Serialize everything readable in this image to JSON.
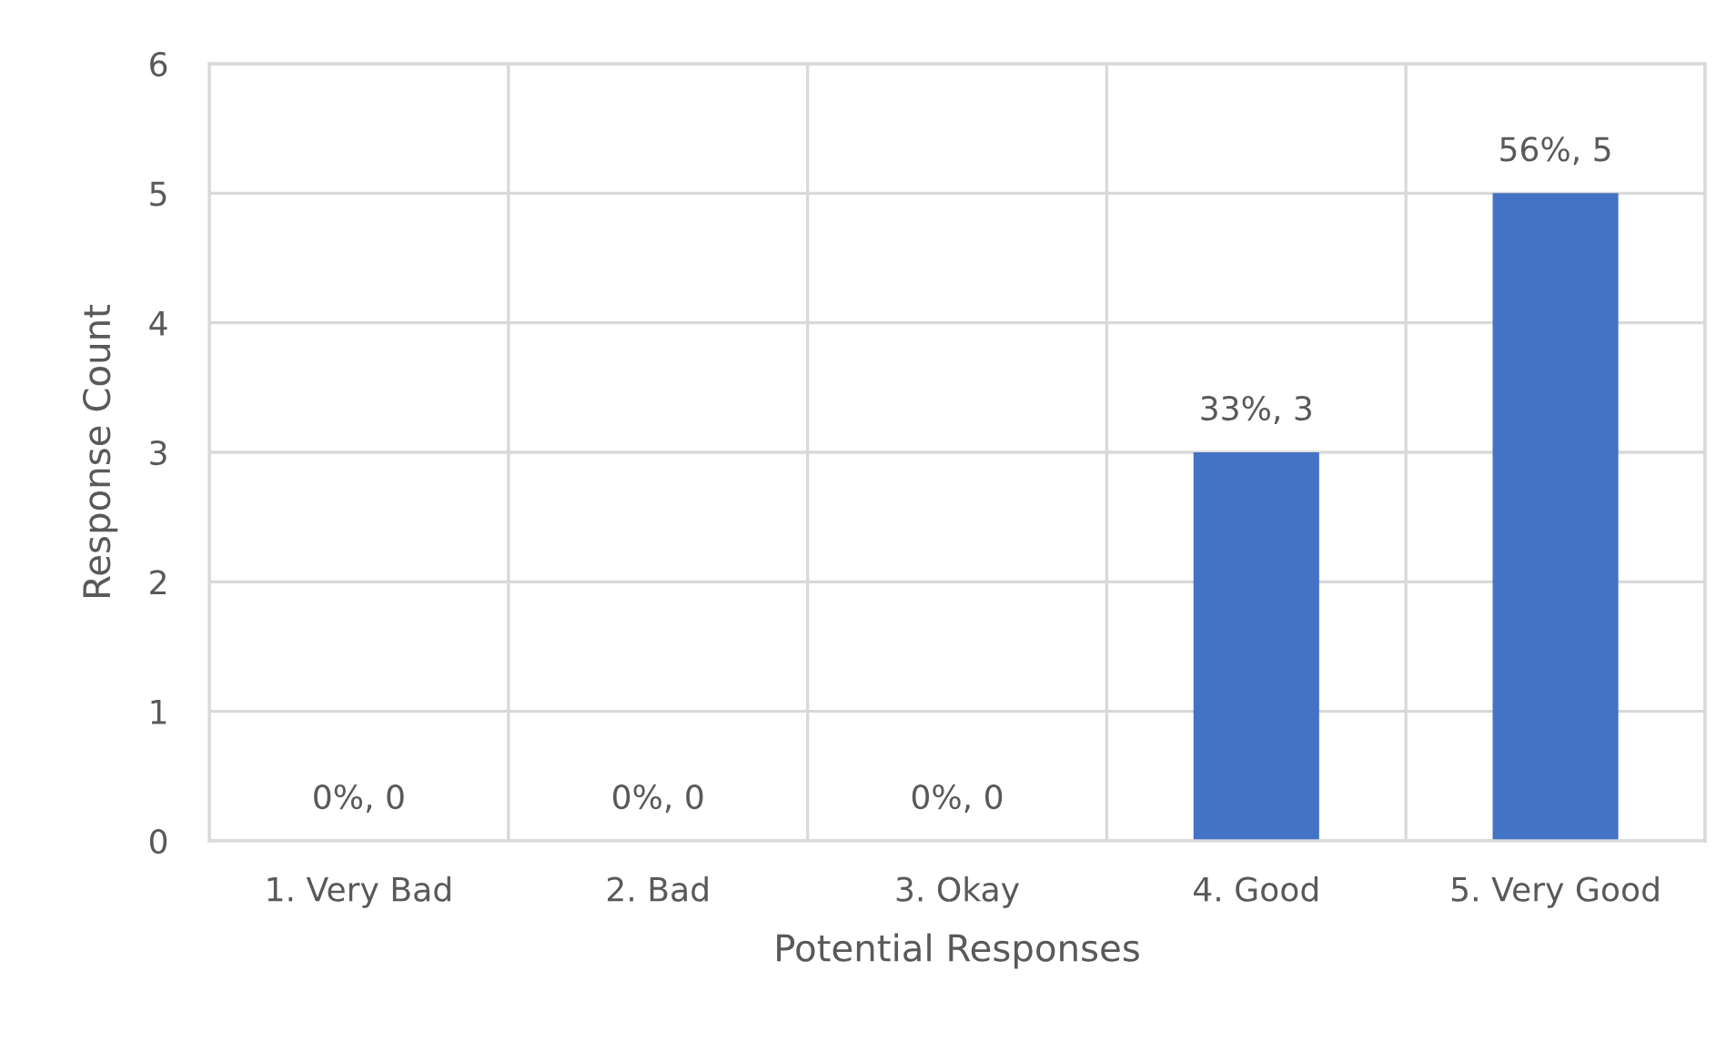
{
  "chart_data": {
    "type": "bar",
    "xlabel": "Potential Responses",
    "ylabel": "Response Count",
    "categories": [
      "1. Very Bad",
      "2. Bad",
      "3. Okay",
      "4. Good",
      "5. Very Good"
    ],
    "values": [
      0,
      0,
      0,
      3,
      5
    ],
    "color": "#4472c4",
    "value_labels": [
      "0%, 0",
      "0%, 0",
      "0%, 0",
      "33%, 3",
      "56%, 5"
    ],
    "ylim": [
      0,
      6
    ],
    "yticks": [
      0,
      1,
      2,
      3,
      4,
      5,
      6
    ],
    "grid": true
  }
}
